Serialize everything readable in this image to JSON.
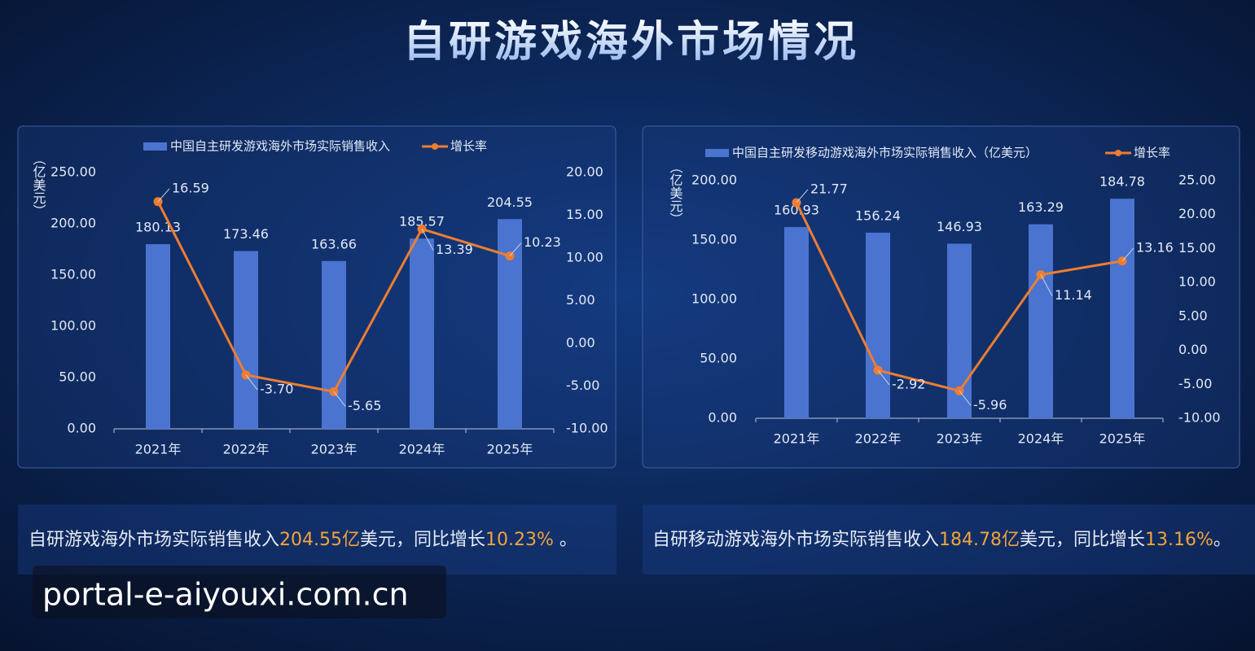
{
  "title": "自研游戏海外市场情况",
  "chart_data": [
    {
      "type": "bar_line",
      "y_label": "（亿美元）",
      "categories": [
        "2021年",
        "2022年",
        "2023年",
        "2024年",
        "2025年"
      ],
      "series": [
        {
          "name": "中国自主研发游戏海外市场实际销售收入",
          "color": "#4a74cf",
          "values": [
            180.13,
            173.46,
            163.66,
            185.57,
            204.55
          ]
        },
        {
          "name": "增长率",
          "color": "#ee7d31",
          "axis": "y2",
          "values": [
            16.59,
            -3.7,
            -5.65,
            13.39,
            10.23
          ],
          "value_labels": [
            "16.59",
            "-3.70",
            "-5.65",
            "13.39",
            "10.23"
          ]
        }
      ],
      "ylim": [
        0,
        250
      ],
      "yticks": [
        {
          "value": 0,
          "label": "0.00"
        },
        {
          "value": 50,
          "label": "50.00"
        },
        {
          "value": 100,
          "label": "100.00"
        },
        {
          "value": 150,
          "label": "150.00"
        },
        {
          "value": 200,
          "label": "200.00"
        },
        {
          "value": 250,
          "label": "250.00"
        }
      ],
      "y2lim": [
        -10,
        20
      ],
      "y2ticks": [
        {
          "value": -10,
          "label": "-10.00"
        },
        {
          "value": -5,
          "label": "-5.00"
        },
        {
          "value": 0,
          "label": "0.00"
        },
        {
          "value": 5,
          "label": "5.00"
        },
        {
          "value": 10,
          "label": "10.00"
        },
        {
          "value": 15,
          "label": "15.00"
        },
        {
          "value": 20,
          "label": "20.00"
        }
      ]
    },
    {
      "type": "bar_line",
      "y_label": "（亿美元）",
      "categories": [
        "2021年",
        "2022年",
        "2023年",
        "2024年",
        "2025年"
      ],
      "series": [
        {
          "name": "中国自主研发移动游戏海外市场实际销售收入（亿美元）",
          "color": "#4a74cf",
          "values": [
            160.93,
            156.24,
            146.93,
            163.29,
            184.78
          ]
        },
        {
          "name": "增长率",
          "color": "#ee7d31",
          "axis": "y2",
          "values": [
            21.77,
            -2.92,
            -5.96,
            11.14,
            13.16
          ]
        }
      ],
      "ylim": [
        0,
        200
      ],
      "yticks": [
        {
          "value": 0,
          "label": "0.00"
        },
        {
          "value": 50,
          "label": "50.00"
        },
        {
          "value": 100,
          "label": "100.00"
        },
        {
          "value": 150,
          "label": "150.00"
        },
        {
          "value": 200,
          "label": "200.00"
        }
      ],
      "y2lim": [
        -10,
        25
      ],
      "y2ticks": [
        {
          "value": -10,
          "label": "-10.00"
        },
        {
          "value": -5,
          "label": "-5.00"
        },
        {
          "value": 0,
          "label": "0.00"
        },
        {
          "value": 5,
          "label": "5.00"
        },
        {
          "value": 10,
          "label": "10.00"
        },
        {
          "value": 15,
          "label": "15.00"
        },
        {
          "value": 20,
          "label": "20.00"
        },
        {
          "value": 25,
          "label": "25.00"
        }
      ]
    }
  ],
  "captions": [
    [
      {
        "text": "自研游戏海外市场实际销售收入",
        "color": "#e6ebf5"
      },
      {
        "text": "204.55亿",
        "color": "#f2a33a"
      },
      {
        "text": "美元，同比增长",
        "color": "#e6ebf5"
      },
      {
        "text": "10.23%",
        "color": "#f2a33a"
      },
      {
        "text": " 。",
        "color": "#e6ebf5"
      }
    ],
    [
      {
        "text": "自研移动游戏海外市场实际销售收入",
        "color": "#e6ebf5"
      },
      {
        "text": "184.78亿",
        "color": "#f2a33a"
      },
      {
        "text": "美元，同比增长",
        "color": "#e6ebf5"
      },
      {
        "text": "13.16%",
        "color": "#f2a33a"
      },
      {
        "text": "。",
        "color": "#e6ebf5"
      }
    ]
  ],
  "watermark": "portal-e-aiyouxi.com.cn"
}
